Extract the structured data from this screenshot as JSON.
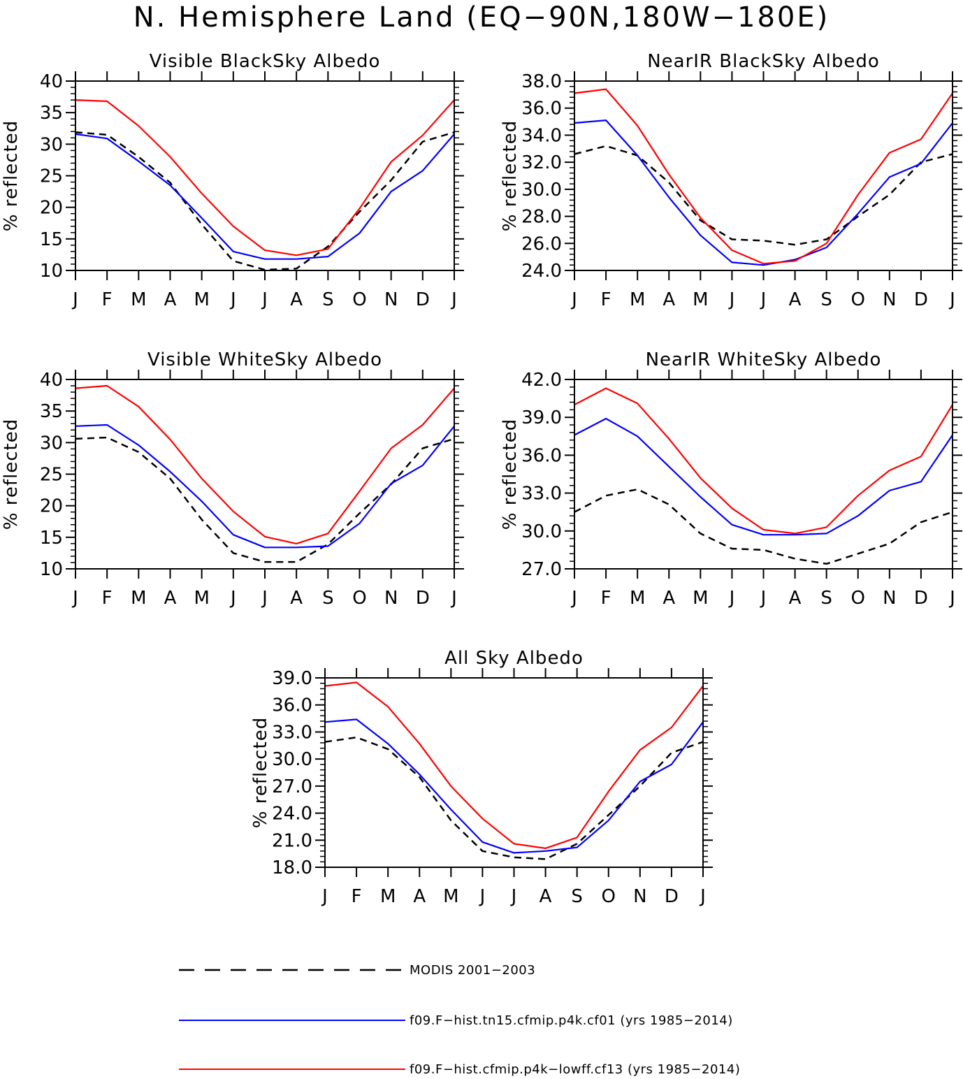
{
  "figure": {
    "title": "N. Hemisphere Land (EQ−90N,180W−180E)"
  },
  "legend": {
    "entries": [
      {
        "label": "MODIS 2001−2003",
        "color": "#000000",
        "style": "dashed"
      },
      {
        "label": "f09.F−hist.tn15.cfmip.p4k.cf01 (yrs 1985−2014)",
        "color": "#0000ff",
        "style": "solid"
      },
      {
        "label": "f09.F−hist.cfmip.p4k−lowff.cf13 (yrs 1985−2014)",
        "color": "#ff0000",
        "style": "solid"
      }
    ]
  },
  "chart_data": [
    {
      "type": "line",
      "title": "Visible BlackSky Albedo",
      "ylabel": "% reflected",
      "categories": [
        "J",
        "F",
        "M",
        "A",
        "M",
        "J",
        "J",
        "A",
        "S",
        "O",
        "N",
        "D",
        "J"
      ],
      "ylim": [
        10,
        40
      ],
      "yticks": [
        "10",
        "15",
        "20",
        "25",
        "30",
        "35",
        "40"
      ],
      "series": [
        {
          "name": "MODIS 2001−2003",
          "values": [
            31.9,
            31.5,
            28.0,
            23.9,
            17.3,
            11.5,
            10.1,
            10.3,
            13.8,
            19.3,
            24.3,
            30.4,
            31.9
          ]
        },
        {
          "name": "f09.F−hist.tn15.cfmip.p4k.cf01 (yrs 1985−2014)",
          "values": [
            31.6,
            30.9,
            27.3,
            23.5,
            18.3,
            13.0,
            11.8,
            11.8,
            12.2,
            15.9,
            22.5,
            25.8,
            31.6
          ]
        },
        {
          "name": "f09.F−hist.cfmip.p4k−lowff.cf13 (yrs 1985−2014)",
          "values": [
            37.0,
            36.8,
            32.9,
            28.0,
            22.2,
            17.0,
            13.2,
            12.4,
            13.4,
            19.8,
            27.2,
            31.4,
            37.0
          ]
        }
      ]
    },
    {
      "type": "line",
      "title": "NearIR BlackSky Albedo",
      "ylabel": "% reflected",
      "categories": [
        "J",
        "F",
        "M",
        "A",
        "M",
        "J",
        "J",
        "A",
        "S",
        "O",
        "N",
        "D",
        "J"
      ],
      "ylim": [
        24,
        38
      ],
      "yticks": [
        "24.0",
        "26.0",
        "28.0",
        "30.0",
        "32.0",
        "34.0",
        "36.0",
        "38.0"
      ],
      "series": [
        {
          "name": "MODIS 2001−2003",
          "values": [
            32.6,
            33.2,
            32.5,
            30.5,
            27.7,
            26.3,
            26.2,
            25.9,
            26.3,
            28.0,
            29.6,
            32.0,
            32.6
          ]
        },
        {
          "name": "f09.F−hist.tn15.cfmip.p4k.cf01 (yrs 1985−2014)",
          "values": [
            34.9,
            35.1,
            32.5,
            29.4,
            26.6,
            24.6,
            24.4,
            24.8,
            25.7,
            28.2,
            30.9,
            31.9,
            34.9
          ]
        },
        {
          "name": "f09.F−hist.cfmip.p4k−lowff.cf13 (yrs 1985−2014)",
          "values": [
            37.1,
            37.4,
            34.7,
            31.1,
            27.9,
            25.5,
            24.5,
            24.7,
            26.0,
            29.6,
            32.7,
            33.7,
            37.1
          ]
        }
      ]
    },
    {
      "type": "line",
      "title": "Visible WhiteSky Albedo",
      "ylabel": "% reflected",
      "categories": [
        "J",
        "F",
        "M",
        "A",
        "M",
        "J",
        "J",
        "A",
        "S",
        "O",
        "N",
        "D",
        "J"
      ],
      "ylim": [
        10,
        40
      ],
      "yticks": [
        "10",
        "15",
        "20",
        "25",
        "30",
        "35",
        "40"
      ],
      "series": [
        {
          "name": "MODIS 2001−2003",
          "values": [
            30.6,
            30.8,
            28.5,
            24.3,
            17.8,
            12.5,
            11.1,
            11.1,
            13.9,
            18.8,
            23.4,
            29.1,
            30.6
          ]
        },
        {
          "name": "f09.F−hist.tn15.cfmip.p4k.cf01 (yrs 1985−2014)",
          "values": [
            32.6,
            32.8,
            29.6,
            25.4,
            20.7,
            15.4,
            13.4,
            13.4,
            13.6,
            17.2,
            23.5,
            26.4,
            32.6
          ]
        },
        {
          "name": "f09.F−hist.cfmip.p4k−lowff.cf13 (yrs 1985−2014)",
          "values": [
            38.6,
            39.0,
            35.7,
            30.5,
            24.3,
            19.1,
            15.1,
            14.0,
            15.6,
            22.3,
            29.1,
            32.8,
            38.6
          ]
        }
      ]
    },
    {
      "type": "line",
      "title": "NearIR WhiteSky Albedo",
      "ylabel": "% reflected",
      "categories": [
        "J",
        "F",
        "M",
        "A",
        "M",
        "J",
        "J",
        "A",
        "S",
        "O",
        "N",
        "D",
        "J"
      ],
      "ylim": [
        27,
        42
      ],
      "yticks": [
        "27.0",
        "30.0",
        "33.0",
        "36.0",
        "39.0",
        "42.0"
      ],
      "series": [
        {
          "name": "MODIS 2001−2003",
          "values": [
            31.5,
            32.8,
            33.3,
            32.1,
            29.8,
            28.6,
            28.5,
            27.8,
            27.4,
            28.2,
            29.0,
            30.7,
            31.5
          ]
        },
        {
          "name": "f09.F−hist.tn15.cfmip.p4k.cf01 (yrs 1985−2014)",
          "values": [
            37.6,
            38.9,
            37.5,
            35.1,
            32.7,
            30.5,
            29.7,
            29.7,
            29.8,
            31.2,
            33.2,
            33.9,
            37.6
          ]
        },
        {
          "name": "f09.F−hist.cfmip.p4k−lowff.cf13 (yrs 1985−2014)",
          "values": [
            40.0,
            41.3,
            40.1,
            37.3,
            34.2,
            31.8,
            30.1,
            29.8,
            30.3,
            32.8,
            34.8,
            35.9,
            40.0
          ]
        }
      ]
    },
    {
      "type": "line",
      "title": "All Sky Albedo",
      "ylabel": "% reflected",
      "categories": [
        "J",
        "F",
        "M",
        "A",
        "M",
        "J",
        "J",
        "A",
        "S",
        "O",
        "N",
        "D",
        "J"
      ],
      "ylim": [
        18,
        39
      ],
      "yticks": [
        "18.0",
        "21.0",
        "24.0",
        "27.0",
        "30.0",
        "33.0",
        "36.0",
        "39.0"
      ],
      "series": [
        {
          "name": "MODIS 2001−2003",
          "values": [
            31.9,
            32.4,
            31.1,
            28.0,
            23.2,
            19.8,
            19.1,
            18.9,
            20.6,
            23.8,
            27.0,
            30.7,
            31.9
          ]
        },
        {
          "name": "f09.F−hist.tn15.cfmip.p4k.cf01 (yrs 1985−2014)",
          "values": [
            34.1,
            34.4,
            31.7,
            28.3,
            24.4,
            20.8,
            19.6,
            19.8,
            20.2,
            23.2,
            27.5,
            29.4,
            34.1
          ]
        },
        {
          "name": "f09.F−hist.cfmip.p4k−lowff.cf13 (yrs 1985−2014)",
          "values": [
            38.1,
            38.5,
            35.8,
            31.7,
            27.0,
            23.4,
            20.6,
            20.1,
            21.3,
            26.4,
            31.0,
            33.5,
            38.1
          ]
        }
      ]
    }
  ]
}
